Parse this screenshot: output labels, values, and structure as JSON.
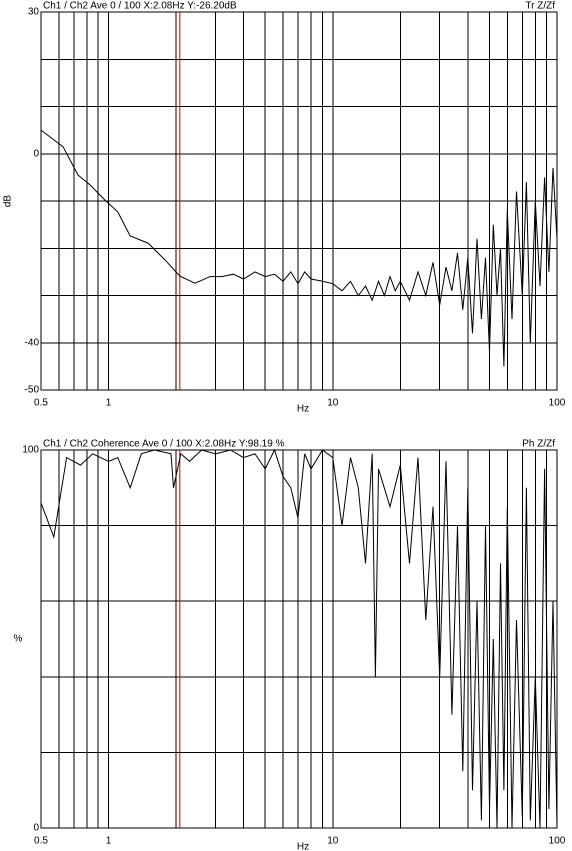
{
  "chart_data": [
    {
      "type": "line",
      "header_left": "Ch1 / Ch2  Ave 0 / 100  X:2.08Hz  Y:-26.20dB",
      "header_right": "Tr Z/Zf",
      "x_label": "Hz",
      "y_label": "dB",
      "xscale": "log",
      "xlim": [
        0.5,
        100
      ],
      "xticks": [
        0.5,
        1,
        10,
        100
      ],
      "xgrid": [
        0.5,
        0.6,
        0.7,
        0.8,
        0.9,
        1,
        2,
        3,
        4,
        5,
        6,
        7,
        8,
        9,
        10,
        20,
        30,
        40,
        50,
        60,
        70,
        80,
        90,
        100
      ],
      "ylim": [
        -50,
        30
      ],
      "yticks": [
        30,
        0,
        -40,
        -50
      ],
      "ygrid": [
        30,
        20,
        10,
        0,
        -10,
        -20,
        -30,
        -40,
        -50
      ],
      "cursor_x": 2.08,
      "cursor_color": "#cc0000",
      "color": "#000000",
      "x": [
        0.5,
        0.627,
        0.731,
        0.827,
        0.965,
        1.1,
        1.25,
        1.5,
        1.79,
        2.08,
        2.43,
        2.84,
        3.2,
        3.6,
        4,
        4.5,
        5,
        5.5,
        6,
        6.5,
        7,
        7.5,
        8,
        9,
        10,
        11,
        12,
        13,
        14,
        15,
        16,
        17,
        18,
        19,
        20,
        22,
        24,
        26,
        28,
        30,
        32,
        34,
        36,
        38,
        40,
        42,
        44,
        46,
        48,
        50,
        52,
        54,
        56,
        58,
        60,
        63,
        66,
        70,
        73,
        76,
        80,
        84,
        88,
        92,
        96,
        100
      ],
      "values": [
        5,
        1.5,
        -4.5,
        -6.6,
        -9.8,
        -12.3,
        -17.4,
        -18.9,
        -22.5,
        -25.9,
        -27.4,
        -26,
        -26,
        -25.5,
        -26.5,
        -25,
        -26,
        -25.5,
        -27,
        -25,
        -27.5,
        -25,
        -26.5,
        -27,
        -27.5,
        -29,
        -27,
        -30,
        -28,
        -31,
        -27,
        -30,
        -26,
        -29,
        -27,
        -31,
        -25,
        -30,
        -23,
        -32,
        -24,
        -29,
        -21,
        -33,
        -22,
        -38,
        -18,
        -35,
        -22,
        -42,
        -15,
        -30,
        -20,
        -45,
        -12,
        -35,
        -8,
        -30,
        -6,
        -40,
        -10,
        -28,
        -5,
        -25,
        -3,
        -18
      ]
    },
    {
      "type": "line",
      "header_left": "Ch1 / Ch2  Coherence Ave 0 / 100  X:2.08Hz  Y:98.19 %",
      "header_right": "Ph Z/Zf",
      "x_label": "Hz",
      "y_label": "%",
      "xscale": "log",
      "xlim": [
        0.5,
        100
      ],
      "xticks": [
        0.5,
        1,
        10,
        100
      ],
      "xgrid": [
        0.5,
        0.6,
        0.7,
        0.8,
        0.9,
        1,
        2,
        3,
        4,
        5,
        6,
        7,
        8,
        9,
        10,
        20,
        30,
        40,
        50,
        60,
        70,
        80,
        90,
        100
      ],
      "ylim": [
        0,
        100
      ],
      "yticks": [
        100,
        0
      ],
      "ygrid": [
        0,
        20,
        40,
        60,
        80,
        100
      ],
      "cursor_x": 2.08,
      "cursor_color": "#cc0000",
      "color": "#000000",
      "x": [
        0.5,
        0.57,
        0.65,
        0.75,
        0.85,
        1,
        1.1,
        1.25,
        1.4,
        1.6,
        1.9,
        1.95,
        2.1,
        2.3,
        2.6,
        3,
        3.5,
        4,
        4.5,
        5,
        5.5,
        6,
        6.5,
        7,
        7.5,
        8,
        9,
        10,
        11,
        12,
        13,
        14,
        15,
        15.5,
        16,
        18,
        20,
        22,
        24,
        26,
        28,
        30,
        32,
        34,
        36,
        38,
        40,
        42,
        44,
        46,
        48,
        50,
        52,
        54,
        56,
        58,
        60,
        63,
        66,
        70,
        73,
        76,
        80,
        84,
        88,
        92,
        96,
        100
      ],
      "values": [
        86,
        77,
        98,
        96,
        99,
        97,
        98,
        90,
        99,
        100,
        99,
        90,
        99,
        97,
        100,
        99,
        100,
        98,
        99,
        95,
        100,
        93,
        90,
        82,
        99,
        95,
        100,
        98,
        80,
        98,
        90,
        70,
        99,
        40,
        95,
        85,
        96,
        70,
        98,
        55,
        85,
        40,
        97,
        30,
        80,
        15,
        90,
        10,
        60,
        2,
        80,
        5,
        50,
        0,
        70,
        10,
        85,
        0,
        55,
        3,
        90,
        2,
        40,
        0,
        95,
        5,
        60,
        0
      ]
    }
  ]
}
